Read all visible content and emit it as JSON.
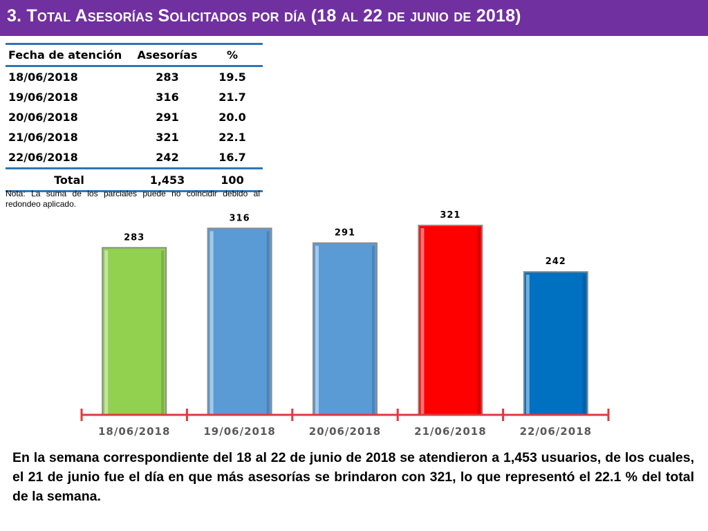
{
  "header": {
    "title": "3.  Total Asesorías Solicitados por día  (18 al 22 de junio de 2018)",
    "bar_color": "#7030a0"
  },
  "table": {
    "headers": [
      "Fecha de atención",
      "Asesorías",
      "%"
    ],
    "rows": [
      {
        "date": "18/06/2018",
        "count": "283",
        "pct": "19.5"
      },
      {
        "date": "19/06/2018",
        "count": "316",
        "pct": "21.7"
      },
      {
        "date": "20/06/2018",
        "count": "291",
        "pct": "20.0"
      },
      {
        "date": "21/06/2018",
        "count": "321",
        "pct": "22.1"
      },
      {
        "date": "22/06/2018",
        "count": "242",
        "pct": "16.7"
      }
    ],
    "total": {
      "label": "Total",
      "count": "1,453",
      "pct": "100"
    },
    "rule_color": "#2e75b6"
  },
  "note": "Nota: La suma de los parciales puede no coincidir debido al redondeo aplicado.",
  "chart_data": {
    "type": "bar",
    "categories": [
      "18/06/2018",
      "19/06/2018",
      "20/06/2018",
      "21/06/2018",
      "22/06/2018"
    ],
    "values": [
      283,
      316,
      291,
      321,
      242
    ],
    "colors": [
      "#92d050",
      "#5b9bd5",
      "#5b9bd5",
      "#ff0000",
      "#0070c0"
    ],
    "axis_color": "#e0393e",
    "tick_label_color": "#595959",
    "title": "",
    "xlabel": "",
    "ylabel": "",
    "ylim": [
      0,
      321
    ],
    "grid": false,
    "legend": "none"
  },
  "summary": "En la semana correspondiente del 18 al 22 de junio de 2018 se atendieron a 1,453 usuarios, de los cuales, el 21 de junio fue el día en que más asesorías se brindaron con 321, lo que representó el 22.1 % del total de la semana."
}
